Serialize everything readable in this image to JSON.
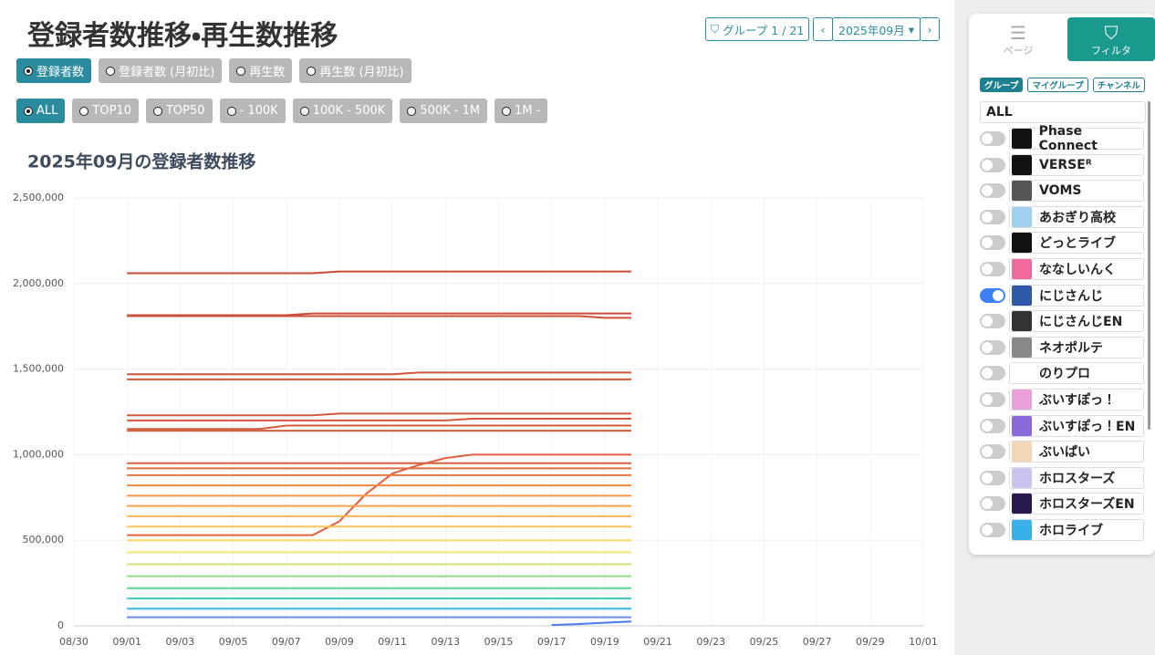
{
  "header": {
    "title": "登録者数推移・再生数推移",
    "group_button": "グループ 1 / 21",
    "month": "2025年09月"
  },
  "metric_options": [
    {
      "label": "登録者数",
      "selected": true
    },
    {
      "label": "登録者数 (月初比)",
      "selected": false
    },
    {
      "label": "再生数",
      "selected": false
    },
    {
      "label": "再生数 (月初比)",
      "selected": false
    }
  ],
  "range_options": [
    {
      "label": "ALL",
      "selected": true
    },
    {
      "label": "TOP10",
      "selected": false
    },
    {
      "label": "TOP50",
      "selected": false
    },
    {
      "label": "- 100K",
      "selected": false
    },
    {
      "label": "100K - 500K",
      "selected": false
    },
    {
      "label": "500K - 1M",
      "selected": false
    },
    {
      "label": "1M -",
      "selected": false
    }
  ],
  "chart_data": {
    "type": "line",
    "title": "2025年09月の登録者数推移",
    "x": [
      "09/01",
      "09/02",
      "09/03",
      "09/04",
      "09/05",
      "09/06",
      "09/07",
      "09/08",
      "09/09",
      "09/10",
      "09/11",
      "09/12",
      "09/13",
      "09/14",
      "09/15",
      "09/16",
      "09/17",
      "09/18",
      "09/19",
      "09/20"
    ],
    "xlim": [
      "08/30",
      "10/01"
    ],
    "xticks": [
      "08/30",
      "09/01",
      "09/03",
      "09/05",
      "09/07",
      "09/09",
      "09/11",
      "09/13",
      "09/15",
      "09/17",
      "09/19",
      "09/21",
      "09/23",
      "09/25",
      "09/27",
      "09/29",
      "10/01"
    ],
    "ylim": [
      0,
      2500000
    ],
    "yticks": [
      0,
      {
        "value": 500000,
        "label": "500,000"
      },
      {
        "value": 1000000,
        "label": "1,000,000"
      },
      {
        "value": 1500000,
        "label": "1,500,000"
      },
      {
        "value": 2000000,
        "label": "2,000,000"
      },
      {
        "value": 2500000,
        "label": "2,500,000"
      }
    ],
    "grid": true,
    "series": [
      {
        "color": "#cc4b37",
        "values": [
          2060000,
          2060000,
          2060000,
          2060000,
          2060000,
          2060000,
          2060000,
          2060000,
          2070000,
          2070000,
          2070000,
          2070000,
          2070000,
          2070000,
          2070000,
          2070000,
          2070000,
          2070000,
          2070000,
          2070000
        ]
      },
      {
        "color": "#cc4b37",
        "values": [
          1815000,
          1815000,
          1815000,
          1815000,
          1815000,
          1815000,
          1815000,
          1825000,
          1825000,
          1825000,
          1825000,
          1825000,
          1825000,
          1825000,
          1825000,
          1825000,
          1825000,
          1825000,
          1825000,
          1825000
        ]
      },
      {
        "color": "#cf5038",
        "values": [
          1810000,
          1810000,
          1810000,
          1810000,
          1810000,
          1810000,
          1810000,
          1810000,
          1810000,
          1810000,
          1810000,
          1810000,
          1810000,
          1810000,
          1810000,
          1810000,
          1810000,
          1810000,
          1800000,
          1800000
        ]
      },
      {
        "color": "#d25439",
        "values": [
          1470000,
          1470000,
          1470000,
          1470000,
          1470000,
          1470000,
          1470000,
          1470000,
          1470000,
          1470000,
          1470000,
          1480000,
          1480000,
          1480000,
          1480000,
          1480000,
          1480000,
          1480000,
          1480000,
          1480000
        ]
      },
      {
        "color": "#d25439",
        "values": [
          1440000,
          1440000,
          1440000,
          1440000,
          1440000,
          1440000,
          1440000,
          1440000,
          1440000,
          1440000,
          1440000,
          1440000,
          1440000,
          1440000,
          1440000,
          1440000,
          1440000,
          1440000,
          1440000,
          1440000
        ]
      },
      {
        "color": "#d5583a",
        "values": [
          1230000,
          1230000,
          1230000,
          1230000,
          1230000,
          1230000,
          1230000,
          1230000,
          1240000,
          1240000,
          1240000,
          1240000,
          1240000,
          1240000,
          1240000,
          1240000,
          1240000,
          1240000,
          1240000,
          1240000
        ]
      },
      {
        "color": "#d5583a",
        "values": [
          1200000,
          1200000,
          1200000,
          1200000,
          1200000,
          1200000,
          1200000,
          1200000,
          1200000,
          1200000,
          1200000,
          1200000,
          1200000,
          1210000,
          1210000,
          1210000,
          1210000,
          1210000,
          1210000,
          1210000
        ]
      },
      {
        "color": "#d75c3b",
        "values": [
          1150000,
          1150000,
          1150000,
          1150000,
          1150000,
          1150000,
          1170000,
          1170000,
          1170000,
          1170000,
          1170000,
          1170000,
          1170000,
          1170000,
          1170000,
          1170000,
          1170000,
          1170000,
          1170000,
          1170000
        ]
      },
      {
        "color": "#d75c3b",
        "values": [
          1140000,
          1140000,
          1140000,
          1140000,
          1140000,
          1140000,
          1140000,
          1140000,
          1140000,
          1140000,
          1140000,
          1140000,
          1140000,
          1140000,
          1140000,
          1140000,
          1140000,
          1140000,
          1140000,
          1140000
        ]
      },
      {
        "color": "#e0603f",
        "values": [
          530000,
          530000,
          530000,
          530000,
          530000,
          530000,
          530000,
          530000,
          610000,
          770000,
          890000,
          940000,
          980000,
          1000000,
          1000000,
          1000000,
          1000000,
          1000000,
          1000000,
          1000000
        ]
      },
      {
        "color": "#d9603e",
        "values": [
          950000,
          950000,
          950000,
          950000,
          950000,
          950000,
          950000,
          950000,
          950000,
          950000,
          950000,
          950000,
          950000,
          950000,
          950000,
          950000,
          950000,
          950000,
          950000,
          950000
        ]
      },
      {
        "color": "#e06a40",
        "values": [
          920000,
          920000,
          920000,
          920000,
          920000,
          920000,
          920000,
          920000,
          920000,
          920000,
          920000,
          920000,
          920000,
          920000,
          920000,
          920000,
          920000,
          920000,
          920000,
          920000
        ]
      },
      {
        "color": "#e8773f",
        "values": [
          880000,
          880000,
          880000,
          880000,
          880000,
          880000,
          880000,
          880000,
          880000,
          880000,
          880000,
          880000,
          880000,
          880000,
          880000,
          880000,
          880000,
          880000,
          880000,
          880000
        ]
      },
      {
        "color": "#ef8444",
        "values": [
          820000,
          820000,
          820000,
          820000,
          820000,
          820000,
          820000,
          820000,
          820000,
          820000,
          820000,
          820000,
          820000,
          820000,
          820000,
          820000,
          820000,
          820000,
          820000,
          820000
        ]
      },
      {
        "color": "#f4954a",
        "values": [
          760000,
          760000,
          760000,
          760000,
          760000,
          760000,
          760000,
          760000,
          760000,
          760000,
          760000,
          760000,
          760000,
          760000,
          760000,
          760000,
          760000,
          760000,
          760000,
          760000
        ]
      },
      {
        "color": "#f7a24f",
        "values": [
          700000,
          700000,
          700000,
          700000,
          700000,
          700000,
          700000,
          700000,
          700000,
          700000,
          700000,
          700000,
          700000,
          700000,
          700000,
          700000,
          700000,
          700000,
          700000,
          700000
        ]
      },
      {
        "color": "#fab255",
        "values": [
          640000,
          640000,
          640000,
          640000,
          640000,
          640000,
          640000,
          640000,
          640000,
          640000,
          640000,
          640000,
          640000,
          640000,
          640000,
          640000,
          640000,
          640000,
          640000,
          640000
        ]
      },
      {
        "color": "#fcc45c",
        "values": [
          580000,
          580000,
          580000,
          580000,
          580000,
          580000,
          580000,
          580000,
          580000,
          580000,
          580000,
          580000,
          580000,
          580000,
          580000,
          580000,
          580000,
          580000,
          580000,
          580000
        ]
      },
      {
        "color": "#fed866",
        "values": [
          500000,
          500000,
          500000,
          500000,
          500000,
          500000,
          500000,
          500000,
          500000,
          500000,
          500000,
          500000,
          500000,
          500000,
          500000,
          500000,
          500000,
          500000,
          500000,
          500000
        ]
      },
      {
        "color": "#f4e76e",
        "values": [
          430000,
          430000,
          430000,
          430000,
          430000,
          430000,
          430000,
          430000,
          430000,
          430000,
          430000,
          430000,
          430000,
          430000,
          430000,
          430000,
          430000,
          430000,
          430000,
          430000
        ]
      },
      {
        "color": "#c8e67a",
        "values": [
          360000,
          360000,
          360000,
          360000,
          360000,
          360000,
          360000,
          360000,
          360000,
          360000,
          360000,
          360000,
          360000,
          360000,
          360000,
          360000,
          360000,
          360000,
          360000,
          360000
        ]
      },
      {
        "color": "#8fdc84",
        "values": [
          290000,
          290000,
          290000,
          290000,
          290000,
          290000,
          290000,
          290000,
          290000,
          290000,
          290000,
          290000,
          290000,
          290000,
          290000,
          290000,
          290000,
          290000,
          290000,
          290000
        ]
      },
      {
        "color": "#5fd49a",
        "values": [
          220000,
          220000,
          220000,
          220000,
          220000,
          220000,
          220000,
          220000,
          220000,
          220000,
          220000,
          220000,
          220000,
          220000,
          220000,
          220000,
          220000,
          220000,
          220000,
          220000
        ]
      },
      {
        "color": "#3fcfc0",
        "values": [
          160000,
          160000,
          160000,
          160000,
          160000,
          160000,
          160000,
          160000,
          160000,
          160000,
          160000,
          160000,
          160000,
          160000,
          160000,
          160000,
          160000,
          160000,
          160000,
          160000
        ]
      },
      {
        "color": "#3cb8e6",
        "values": [
          100000,
          100000,
          100000,
          100000,
          100000,
          100000,
          100000,
          100000,
          100000,
          100000,
          100000,
          100000,
          100000,
          100000,
          100000,
          100000,
          100000,
          100000,
          100000,
          100000
        ]
      },
      {
        "color": "#6b8df2",
        "values": [
          50000,
          50000,
          50000,
          50000,
          50000,
          50000,
          50000,
          50000,
          50000,
          50000,
          50000,
          50000,
          50000,
          50000,
          50000,
          50000,
          50000,
          50000,
          50000,
          50000
        ]
      },
      {
        "color": "#4a7af0",
        "values": [
          null,
          null,
          null,
          null,
          null,
          null,
          null,
          null,
          null,
          null,
          null,
          null,
          null,
          null,
          null,
          null,
          5000,
          10000,
          18000,
          25000
        ]
      }
    ]
  },
  "sidebar": {
    "tabs": [
      {
        "label": "ページ",
        "active": false
      },
      {
        "label": "フィルタ",
        "active": true
      }
    ],
    "chips": [
      {
        "label": "グループ",
        "active": true
      },
      {
        "label": "マイグループ",
        "active": false
      },
      {
        "label": "チャンネル",
        "active": false
      }
    ],
    "all_label": "ALL",
    "items": [
      {
        "label": "Phase Connect",
        "on": false
      },
      {
        "label": "VERSEᴿ",
        "on": false
      },
      {
        "label": "VOMS",
        "on": false
      },
      {
        "label": "あおぎり高校",
        "on": false
      },
      {
        "label": "どっとライブ",
        "on": false
      },
      {
        "label": "ななしいんく",
        "on": false
      },
      {
        "label": "にじさんじ",
        "on": true
      },
      {
        "label": "にじさんじEN",
        "on": false
      },
      {
        "label": "ネオポルテ",
        "on": false
      },
      {
        "label": "のりプロ",
        "on": false
      },
      {
        "label": "ぶいすぽっ！",
        "on": false
      },
      {
        "label": "ぶいすぽっ！EN",
        "on": false
      },
      {
        "label": "ぶいぱい",
        "on": false
      },
      {
        "label": "ホロスターズ",
        "on": false
      },
      {
        "label": "ホロスターズEN",
        "on": false
      },
      {
        "label": "ホロライブ",
        "on": false
      }
    ]
  }
}
